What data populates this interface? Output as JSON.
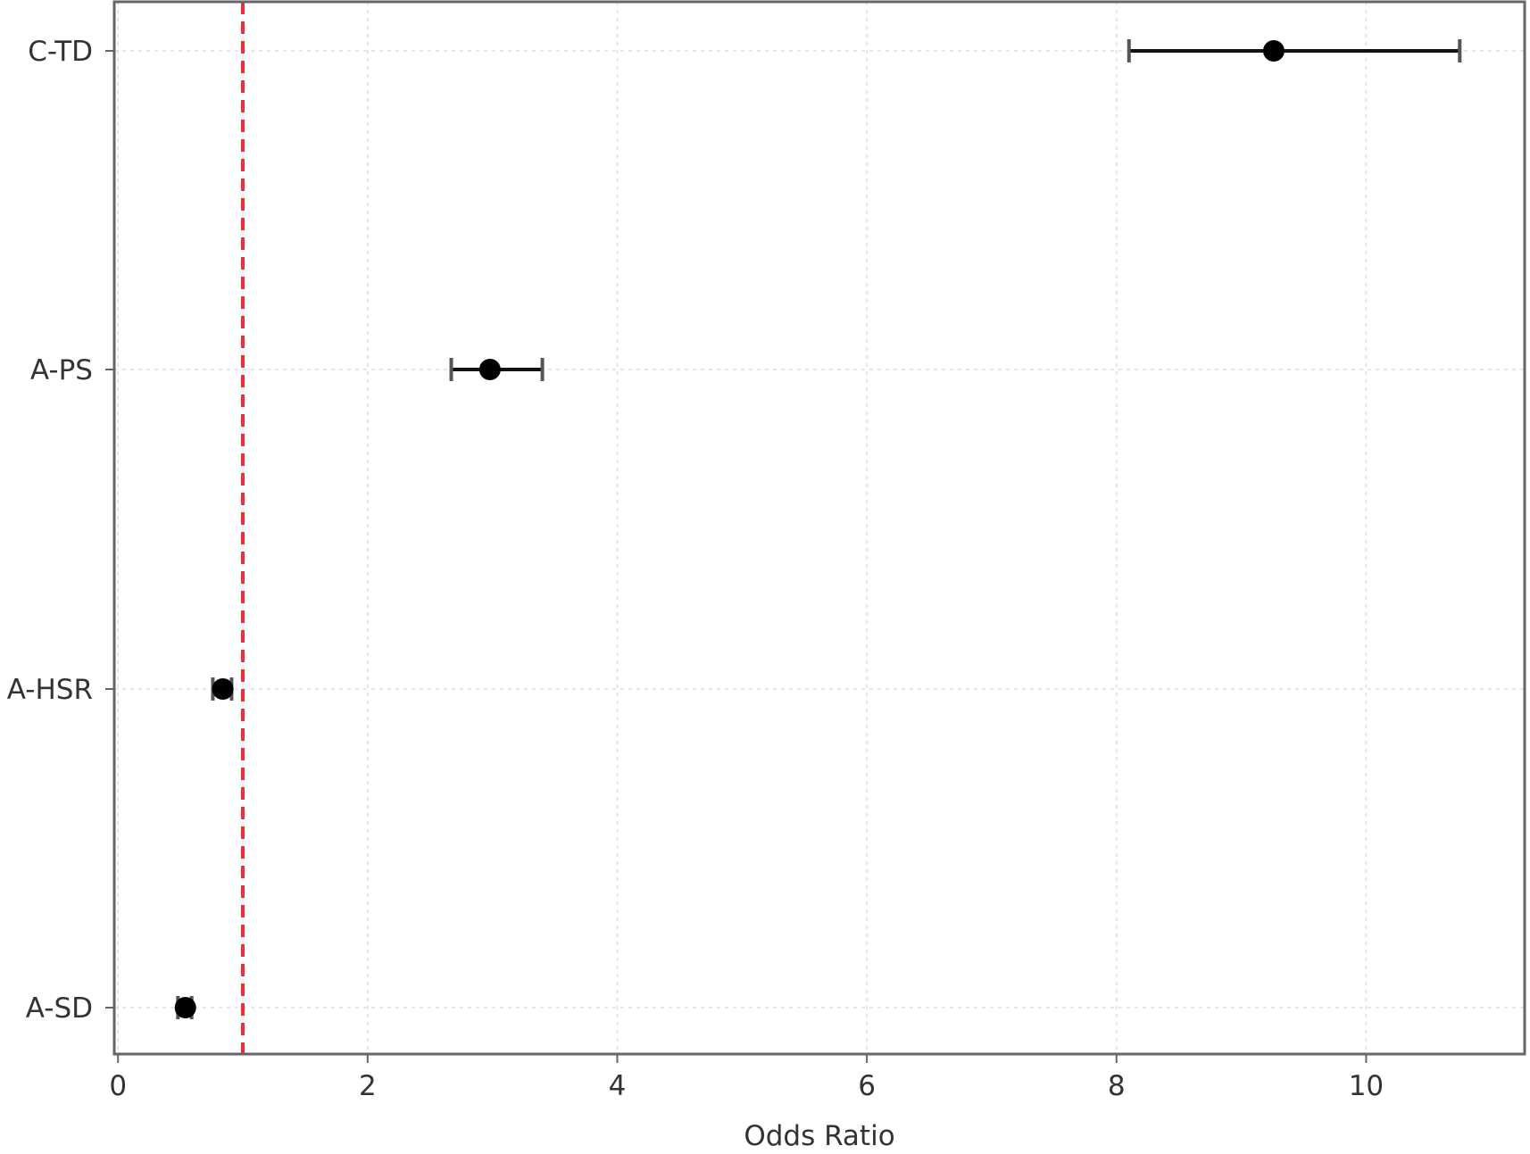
{
  "chart_data": {
    "type": "scatter",
    "subtype": "forest-plot",
    "title": "",
    "xlabel": "Odds Ratio",
    "ylabel": "",
    "xlim": [
      -0.03,
      11.27
    ],
    "xticks": [
      0,
      2,
      4,
      6,
      8,
      10
    ],
    "grid": true,
    "reference_line": {
      "x": 1,
      "color": "#e8303a",
      "style": "dashed"
    },
    "categories": [
      "C-TD",
      "A-PS",
      "A-HSR",
      "A-SD"
    ],
    "points": [
      {
        "label": "C-TD",
        "or": 9.26,
        "ci_low": 8.1,
        "ci_high": 10.75
      },
      {
        "label": "A-PS",
        "or": 2.98,
        "ci_low": 2.67,
        "ci_high": 3.4
      },
      {
        "label": "A-HSR",
        "or": 0.84,
        "ci_low": 0.76,
        "ci_high": 0.91
      },
      {
        "label": "A-SD",
        "or": 0.54,
        "ci_low": 0.48,
        "ci_high": 0.59
      }
    ],
    "colors": {
      "marker": "#000000",
      "axis": "#666666",
      "grid": "#dddddd"
    }
  }
}
